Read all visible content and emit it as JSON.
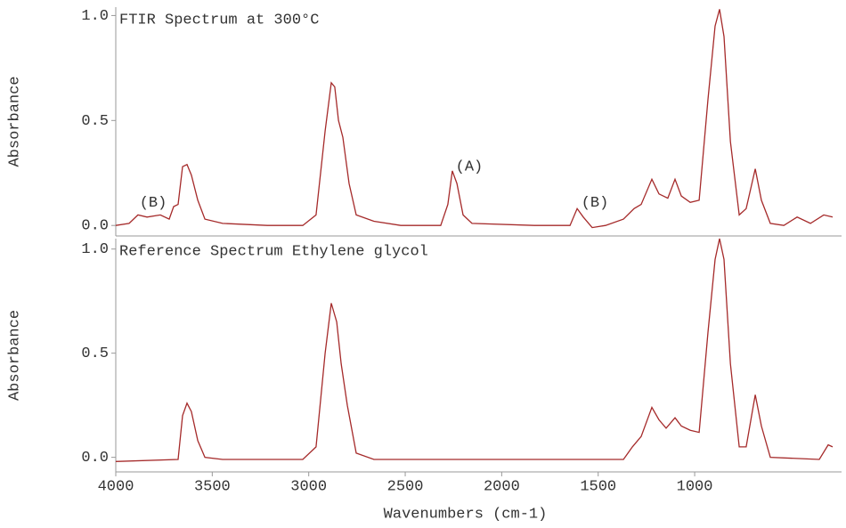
{
  "chart_data": [
    {
      "type": "line",
      "title": "FTIR Spectrum at 300°C",
      "y_label": "Absorbance",
      "color": "#a52a2a",
      "x": [
        4000,
        3931,
        3885,
        3838,
        3769,
        3723,
        3700,
        3677,
        3654,
        3631,
        3608,
        3575,
        3538,
        3446,
        3215,
        3031,
        2962,
        2915,
        2883,
        2865,
        2846,
        2823,
        2791,
        2754,
        2662,
        2523,
        2316,
        2279,
        2256,
        2232,
        2200,
        2154,
        1831,
        1646,
        1609,
        1577,
        1531,
        1462,
        1369,
        1314,
        1277,
        1222,
        1185,
        1139,
        1102,
        1069,
        1023,
        977,
        931,
        894,
        871,
        848,
        815,
        769,
        733,
        686,
        654,
        608,
        538,
        469,
        400,
        331,
        285
      ],
      "values": [
        0.0,
        0.01,
        0.05,
        0.04,
        0.05,
        0.03,
        0.09,
        0.1,
        0.28,
        0.29,
        0.24,
        0.12,
        0.03,
        0.01,
        0.0,
        0.0,
        0.05,
        0.45,
        0.68,
        0.66,
        0.5,
        0.42,
        0.2,
        0.05,
        0.02,
        0.0,
        0.0,
        0.1,
        0.26,
        0.2,
        0.05,
        0.01,
        0.0,
        0.0,
        0.08,
        0.04,
        -0.01,
        0.0,
        0.03,
        0.08,
        0.1,
        0.22,
        0.15,
        0.13,
        0.22,
        0.14,
        0.11,
        0.12,
        0.6,
        0.95,
        1.03,
        0.9,
        0.4,
        0.05,
        0.08,
        0.27,
        0.12,
        0.01,
        0.0,
        0.04,
        0.01,
        0.05,
        0.04
      ],
      "xlim": [
        4000,
        285
      ],
      "ylim": [
        -0.05,
        1.04
      ],
      "yticks": [
        {
          "value": 0,
          "label": "0.0"
        },
        {
          "value": 0.5,
          "label": "0.5"
        },
        {
          "value": 1,
          "label": "1.0"
        }
      ],
      "annotations": [
        {
          "text": "(B)",
          "x": 3806,
          "y": 0.11
        },
        {
          "text": "(A)",
          "x": 2168,
          "y": 0.28
        },
        {
          "text": "(B)",
          "x": 1517,
          "y": 0.11
        }
      ]
    },
    {
      "type": "line",
      "title": "Reference Spectrum Ethylene glycol",
      "y_label": "Absorbance",
      "x_label": "Wavenumbers (cm-1)",
      "color": "#a52a2a",
      "x": [
        4000,
        3677,
        3654,
        3631,
        3608,
        3575,
        3538,
        3446,
        3031,
        2962,
        2915,
        2883,
        2855,
        2832,
        2800,
        2754,
        2662,
        1369,
        1323,
        1277,
        1222,
        1185,
        1148,
        1102,
        1069,
        1023,
        977,
        931,
        894,
        871,
        848,
        815,
        769,
        733,
        686,
        654,
        608,
        354,
        308,
        285
      ],
      "values": [
        -0.02,
        -0.01,
        0.2,
        0.26,
        0.22,
        0.08,
        0.0,
        -0.01,
        -0.01,
        0.05,
        0.5,
        0.74,
        0.65,
        0.45,
        0.25,
        0.02,
        -0.01,
        -0.01,
        0.05,
        0.1,
        0.24,
        0.18,
        0.14,
        0.19,
        0.15,
        0.13,
        0.12,
        0.6,
        0.95,
        1.05,
        0.95,
        0.45,
        0.05,
        0.05,
        0.3,
        0.15,
        0.0,
        -0.01,
        0.06,
        0.05
      ],
      "xlim": [
        4000,
        285
      ],
      "ylim": [
        -0.07,
        1.05
      ],
      "xticks": [
        4000,
        3500,
        3000,
        2500,
        2000,
        1500,
        1000
      ],
      "yticks": [
        {
          "value": 0,
          "label": "0.0"
        },
        {
          "value": 0.5,
          "label": "0.5"
        },
        {
          "value": 1,
          "label": "1.0"
        }
      ]
    }
  ]
}
